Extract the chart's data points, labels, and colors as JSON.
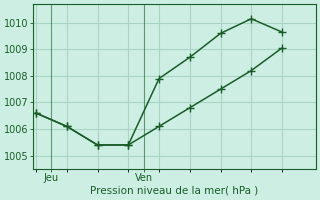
{
  "title": "Pression niveau de la mer( hPa )",
  "background_color": "#cdeee2",
  "grid_color": "#aad4c4",
  "line_color": "#1a5c2a",
  "ylim": [
    1004.5,
    1010.7
  ],
  "yticks": [
    1005,
    1006,
    1007,
    1008,
    1009,
    1010
  ],
  "xtick_labels": [
    "Jeu",
    "Ven"
  ],
  "xtick_positions": [
    0.5,
    3.5
  ],
  "xlim": [
    -0.1,
    9.1
  ],
  "line1_x": [
    0,
    1,
    2,
    3,
    4,
    5,
    6,
    7,
    8
  ],
  "line1_y": [
    1006.6,
    1006.1,
    1005.4,
    1005.4,
    1007.9,
    1008.7,
    1009.6,
    1010.15,
    1009.65
  ],
  "line2_x": [
    0,
    1,
    2,
    3,
    4,
    5,
    6,
    7,
    8
  ],
  "line2_y": [
    1006.6,
    1006.1,
    1005.4,
    1005.4,
    1006.1,
    1006.8,
    1007.5,
    1008.2,
    1009.05
  ],
  "marker_size": 3.2,
  "line_width": 1.1,
  "font_size_label": 7.5,
  "font_size_tick": 7.0,
  "n_xgrid": 9
}
